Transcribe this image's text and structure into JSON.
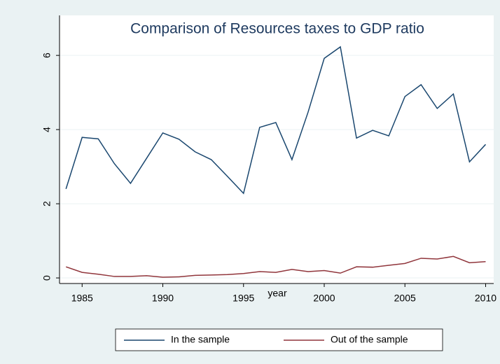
{
  "chart_data": {
    "type": "line",
    "title": "Comparison of Resources taxes to GDP ratio",
    "x_label": "year",
    "x": [
      1984,
      1985,
      1986,
      1987,
      1988,
      1989,
      1990,
      1991,
      1992,
      1993,
      1994,
      1995,
      1996,
      1997,
      1998,
      1999,
      2000,
      2001,
      2002,
      2003,
      2004,
      2005,
      2006,
      2007,
      2008,
      2009,
      2010
    ],
    "series": [
      {
        "name": "In the sample",
        "color": "#1a476f",
        "values": [
          2.4,
          3.79,
          3.75,
          3.08,
          2.55,
          3.23,
          3.91,
          3.74,
          3.4,
          3.19,
          2.74,
          2.28,
          4.06,
          4.19,
          3.19,
          4.47,
          5.92,
          6.23,
          3.77,
          3.98,
          3.83,
          4.89,
          5.21,
          4.57,
          4.96,
          3.13,
          3.6
        ]
      },
      {
        "name": "Out of the sample",
        "color": "#90353b",
        "values": [
          0.3,
          0.15,
          0.1,
          0.04,
          0.04,
          0.06,
          0.02,
          0.03,
          0.07,
          0.08,
          0.09,
          0.12,
          0.17,
          0.15,
          0.23,
          0.17,
          0.2,
          0.13,
          0.3,
          0.29,
          0.34,
          0.39,
          0.53,
          0.51,
          0.58,
          0.41,
          0.44
        ]
      }
    ],
    "xlim": [
      1983.6,
      2010.5
    ],
    "xticks": [
      1985,
      1990,
      1995,
      2000,
      2005,
      2010
    ],
    "ylim": [
      -0.15,
      6.55
    ],
    "yticks": [
      0,
      2,
      4,
      6
    ],
    "grid": true,
    "legend": "bottom"
  }
}
